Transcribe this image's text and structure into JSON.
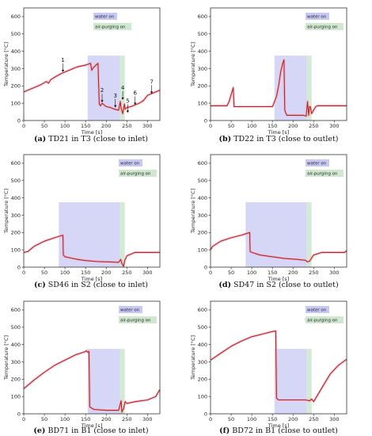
{
  "shared": {
    "ylabel": "Temperature [°C]",
    "xlabel": "Time [s]",
    "legend_water": "water on",
    "legend_air": "air-purging on",
    "colors": {
      "line": "#b5271a",
      "water_shade": "#c8c8f4",
      "air_shade": "#cfe8cf",
      "noise_band": "#f2a6c8"
    }
  },
  "chart_data": [
    {
      "type": "line",
      "panel_letter": "(a)",
      "caption": " TD21 in T3 (close to inlet)",
      "xlim": [
        0,
        330
      ],
      "ylim": [
        0,
        650
      ],
      "xticks": [
        0,
        50,
        100,
        150,
        200,
        250,
        300
      ],
      "yticks": [
        0,
        100,
        200,
        300,
        400,
        500,
        600
      ],
      "water_span": [
        155,
        233
      ],
      "air_span": [
        233,
        245
      ],
      "shade_top": 375,
      "legend": "top-center",
      "x": [
        0,
        20,
        40,
        55,
        60,
        65,
        75,
        90,
        110,
        130,
        150,
        162,
        165,
        167,
        175,
        180,
        183,
        186,
        190,
        200,
        210,
        220,
        230,
        234,
        236,
        240,
        244,
        246,
        250,
        260,
        270,
        280,
        290,
        300,
        315,
        330
      ],
      "y": [
        165,
        185,
        205,
        225,
        215,
        235,
        250,
        270,
        290,
        310,
        320,
        330,
        290,
        300,
        320,
        330,
        95,
        85,
        100,
        80,
        75,
        65,
        60,
        110,
        70,
        40,
        95,
        65,
        75,
        80,
        90,
        100,
        115,
        145,
        160,
        175
      ],
      "annotations": [
        {
          "text": "1",
          "x": 95,
          "y": 270
        },
        {
          "text": "2",
          "x": 190,
          "y": 95
        },
        {
          "text": "3",
          "x": 222,
          "y": 65
        },
        {
          "text": "4",
          "x": 240,
          "y": 110
        },
        {
          "text": "5",
          "x": 252,
          "y": 35
        },
        {
          "text": "6",
          "x": 270,
          "y": 80
        },
        {
          "text": "7",
          "x": 310,
          "y": 145
        }
      ]
    },
    {
      "type": "line",
      "panel_letter": "(b)",
      "caption": " TD22 in T3 (close to outlet)",
      "xlim": [
        0,
        330
      ],
      "ylim": [
        0,
        650
      ],
      "xticks": [
        0,
        50,
        100,
        150,
        200,
        250,
        300
      ],
      "yticks": [
        0,
        100,
        200,
        300,
        400,
        500,
        600
      ],
      "water_span": [
        155,
        233
      ],
      "air_span": [
        233,
        245
      ],
      "shade_top": 375,
      "legend": "top-right",
      "x": [
        0,
        20,
        40,
        45,
        50,
        55,
        57,
        60,
        100,
        150,
        152,
        160,
        165,
        170,
        175,
        178,
        180,
        183,
        185,
        200,
        225,
        232,
        235,
        238,
        240,
        242,
        245,
        250,
        255,
        260,
        300,
        330
      ],
      "y": [
        85,
        85,
        85,
        110,
        150,
        190,
        80,
        80,
        80,
        80,
        90,
        140,
        200,
        280,
        330,
        350,
        60,
        40,
        30,
        30,
        30,
        25,
        110,
        30,
        80,
        80,
        40,
        60,
        80,
        85,
        85,
        85
      ]
    },
    {
      "type": "line",
      "panel_letter": "(c)",
      "caption": " SD46 in S2 (close to inlet)",
      "xlim": [
        0,
        330
      ],
      "ylim": [
        0,
        650
      ],
      "xticks": [
        0,
        50,
        100,
        150,
        200,
        250,
        300
      ],
      "yticks": [
        0,
        100,
        200,
        300,
        400,
        500,
        600
      ],
      "water_span": [
        85,
        233
      ],
      "air_span": [
        233,
        245
      ],
      "shade_top": 375,
      "legend": "top-right",
      "x": [
        0,
        10,
        25,
        50,
        75,
        95,
        96,
        100,
        110,
        130,
        150,
        180,
        210,
        230,
        235,
        238,
        242,
        245,
        250,
        270,
        300,
        330
      ],
      "y": [
        85,
        90,
        120,
        150,
        170,
        185,
        70,
        60,
        55,
        45,
        38,
        32,
        30,
        28,
        45,
        20,
        5,
        40,
        65,
        85,
        85,
        85
      ]
    },
    {
      "type": "line",
      "panel_letter": "(d)",
      "caption": " SD47 in S2 (close to outlet)",
      "xlim": [
        0,
        330
      ],
      "ylim": [
        0,
        650
      ],
      "xticks": [
        0,
        50,
        100,
        150,
        200,
        250,
        300
      ],
      "yticks": [
        0,
        100,
        200,
        300,
        400,
        500,
        600
      ],
      "water_span": [
        85,
        233
      ],
      "air_span": [
        233,
        245
      ],
      "shade_top": 375,
      "legend": "top-right",
      "x": [
        0,
        5,
        25,
        50,
        75,
        95,
        96,
        100,
        120,
        150,
        180,
        210,
        230,
        235,
        240,
        250,
        270,
        300,
        325,
        330
      ],
      "y": [
        100,
        120,
        150,
        170,
        185,
        200,
        90,
        85,
        70,
        60,
        50,
        45,
        40,
        30,
        35,
        70,
        85,
        85,
        85,
        95
      ]
    },
    {
      "type": "line",
      "panel_letter": "(e)",
      "caption": " BD71 in B1 (close to inlet)",
      "xlim": [
        0,
        330
      ],
      "ylim": [
        0,
        650
      ],
      "xticks": [
        0,
        50,
        100,
        150,
        200,
        250,
        300
      ],
      "yticks": [
        0,
        100,
        200,
        300,
        400,
        500,
        600
      ],
      "water_span": [
        155,
        233
      ],
      "air_span": [
        233,
        245
      ],
      "shade_top": 375,
      "legend": "top-right",
      "x": [
        0,
        25,
        50,
        75,
        100,
        125,
        150,
        152,
        155,
        158,
        160,
        170,
        200,
        230,
        236,
        238,
        242,
        246,
        250,
        270,
        300,
        320,
        330
      ],
      "y": [
        145,
        195,
        240,
        280,
        310,
        340,
        360,
        365,
        355,
        360,
        40,
        25,
        20,
        20,
        75,
        10,
        30,
        70,
        60,
        70,
        80,
        100,
        140
      ]
    },
    {
      "type": "line",
      "panel_letter": "(f)",
      "caption": " BD72 in B1 (close to outlet)",
      "xlim": [
        0,
        330
      ],
      "ylim": [
        0,
        650
      ],
      "xticks": [
        0,
        50,
        100,
        150,
        200,
        250,
        300
      ],
      "yticks": [
        0,
        100,
        200,
        300,
        400,
        500,
        600
      ],
      "water_span": [
        155,
        233
      ],
      "air_span": [
        233,
        245
      ],
      "shade_top": 375,
      "legend": "top-right",
      "x": [
        0,
        25,
        50,
        75,
        100,
        125,
        150,
        158,
        160,
        165,
        200,
        230,
        240,
        245,
        250,
        270,
        290,
        310,
        330
      ],
      "y": [
        310,
        350,
        390,
        420,
        445,
        460,
        475,
        478,
        90,
        80,
        80,
        80,
        75,
        85,
        70,
        150,
        230,
        280,
        315
      ]
    }
  ]
}
